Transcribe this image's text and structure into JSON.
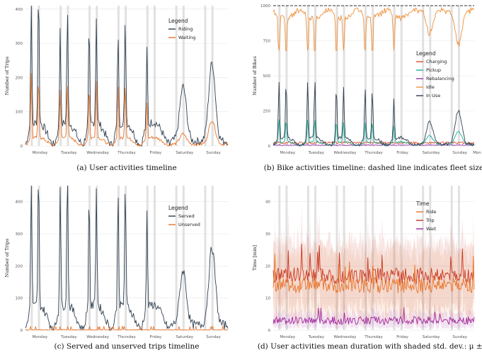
{
  "days": [
    "Monday",
    "Tuesday",
    "Wednesday",
    "Thursday",
    "Friday",
    "Saturday",
    "Sunday"
  ],
  "chart_data": [
    {
      "type": "line",
      "caption": "(a) User activities timeline",
      "ylabel": "Number of Trips",
      "ylim": [
        0,
        410
      ],
      "yticks": [
        0,
        100,
        200,
        300,
        400
      ],
      "legend": {
        "title": "Legend",
        "placement": "top-right"
      },
      "series": [
        {
          "name": "Riding",
          "color": "#2e3e50",
          "am_peaks": [
            380,
            300,
            300,
            280,
            230,
            0,
            0
          ],
          "pm_peaks": [
            400,
            330,
            310,
            300,
            0,
            0,
            0
          ],
          "weekend_peaks": [
            0,
            0,
            0,
            0,
            0,
            160,
            230
          ],
          "base": 70
        },
        {
          "name": "Waiting",
          "color": "#e8742a",
          "am_peaks": [
            195,
            150,
            160,
            160,
            110,
            0,
            0
          ],
          "pm_peaks": [
            175,
            165,
            165,
            160,
            0,
            0,
            0
          ],
          "weekend_peaks": [
            0,
            0,
            0,
            0,
            0,
            30,
            70
          ],
          "base": 25
        }
      ]
    },
    {
      "type": "line",
      "caption": "(b) Bike activities timeline: dashed line indicates fleet size",
      "ylabel": "Number of Bikes",
      "ylim": [
        0,
        1000
      ],
      "yticks": [
        0,
        250,
        500,
        750,
        1000
      ],
      "fleet_size": 1000,
      "extra_tick": "Mon",
      "legend": {
        "title": "Legend",
        "placement": "right"
      },
      "series": [
        {
          "name": "Charging",
          "color": "#d94f2b"
        },
        {
          "name": "Pickup",
          "color": "#1fae97"
        },
        {
          "name": "Rebalancing",
          "color": "#9b2fae"
        },
        {
          "name": "Idle",
          "color": "#f0903a"
        },
        {
          "name": "In Use",
          "color": "#2e3e50"
        }
      ]
    },
    {
      "type": "line",
      "caption": "(c) Served and unserved trips timeline",
      "ylabel": "Number of Trips",
      "ylim": [
        0,
        450
      ],
      "yticks": [
        0,
        100,
        200,
        300,
        400
      ],
      "legend": {
        "title": "Legend",
        "placement": "top-right"
      },
      "series": [
        {
          "name": "Served",
          "color": "#2e3e50",
          "am_peaks": [
            410,
            400,
            370,
            380,
            300,
            0,
            0
          ],
          "pm_peaks": [
            420,
            450,
            370,
            380,
            0,
            0,
            0
          ],
          "weekend_peaks": [
            0,
            0,
            0,
            0,
            0,
            170,
            240
          ],
          "base": 80
        },
        {
          "name": "Unserved",
          "color": "#e8742a",
          "base": 2
        }
      ]
    },
    {
      "type": "line",
      "caption": "(d) User activities mean duration with shaded std. dev.: μ ± σ",
      "ylabel": "Time [min]",
      "ylim": [
        0,
        45
      ],
      "yticks": [
        0,
        10,
        20,
        30,
        40
      ],
      "legend": {
        "title": "Time",
        "placement": "top-right"
      },
      "series": [
        {
          "name": "Ride",
          "color": "#e8742a",
          "mean": 14
        },
        {
          "name": "Trip",
          "color": "#c8321e",
          "mean": 17
        },
        {
          "name": "Wait",
          "color": "#a0239c",
          "mean": 3
        }
      ]
    }
  ]
}
